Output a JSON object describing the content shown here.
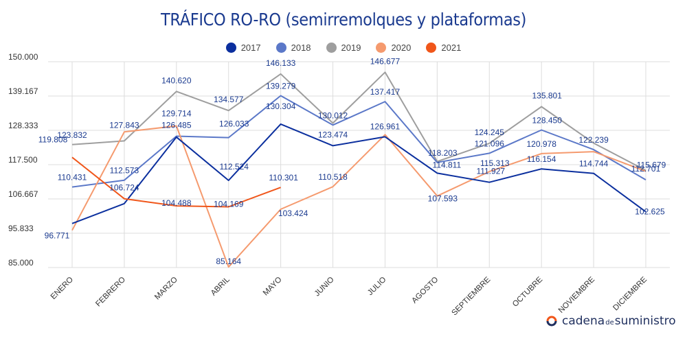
{
  "chart_data": {
    "type": "line",
    "title": "TRÁFICO RO-RO (semirremolques y plataformas)",
    "xlabel": "",
    "ylabel": "",
    "ylim": [
      85000,
      150000
    ],
    "yticks": [
      "150.000",
      "139.167",
      "128.333",
      "117.500",
      "106.667",
      "95.833",
      "85.000"
    ],
    "ytick_values": [
      150000,
      139167,
      128333,
      117500,
      106667,
      95833,
      85000
    ],
    "categories": [
      "ENERO",
      "FEBRERO",
      "MARZO",
      "ABRIL",
      "MAYO",
      "JUNIO",
      "JULIO",
      "AGOSTO",
      "SEPTIEMBRE",
      "OCTUBRE",
      "NOVIEMBRE",
      "DICIEMBRE"
    ],
    "grid": true,
    "legend_position": "top",
    "series": [
      {
        "name": "2017",
        "color": "#0b2f9e",
        "values": [
          98900,
          105200,
          126200,
          112524,
          130304,
          123474,
          126300,
          114811,
          111927,
          116154,
          114744,
          102625
        ],
        "labels": [
          "",
          "",
          "",
          "112.524",
          "130.304",
          "123.474",
          "",
          "114.811",
          "111.927",
          "116.154",
          "114.744",
          "102.625"
        ]
      },
      {
        "name": "2018",
        "color": "#5b78c8",
        "values": [
          110431,
          112573,
          126485,
          126033,
          139279,
          130012,
          137417,
          118203,
          121096,
          128450,
          122239,
          112701
        ],
        "labels": [
          "110.431",
          "112.573",
          "126.485",
          "126.033",
          "139.279",
          "130.012",
          "137.417",
          "118.203",
          "121.096",
          "128.450",
          "122.239",
          "112.701"
        ]
      },
      {
        "name": "2019",
        "color": "#9e9e9e",
        "values": [
          123832,
          125000,
          140620,
          134577,
          146133,
          130600,
          146677,
          118500,
          124245,
          135801,
          124300,
          115679
        ],
        "labels": [
          "123.832",
          "",
          "140.620",
          "134.577",
          "146.133",
          "",
          "146.677",
          "",
          "124.245",
          "135.801",
          "",
          "115.679"
        ]
      },
      {
        "name": "2020",
        "color": "#f59a6e",
        "values": [
          96771,
          127843,
          129714,
          85164,
          103424,
          110518,
          126961,
          107593,
          115313,
          120978,
          121600,
          115400
        ],
        "labels": [
          "96.771",
          "127.843",
          "129.714",
          "85.164",
          "103.424",
          "110.518",
          "126.961",
          "107.593",
          "115.313",
          "120.978",
          "",
          ""
        ]
      },
      {
        "name": "2021",
        "color": "#f0561a",
        "values": [
          119808,
          106724,
          104488,
          104169,
          110301,
          null,
          null,
          null,
          null,
          null,
          null,
          null
        ],
        "labels": [
          "119.808",
          "106.724",
          "104.488",
          "104.169",
          "110.301",
          "",
          "",
          "",
          "",
          "",
          "",
          ""
        ]
      }
    ]
  },
  "logo": {
    "part1": "cadena",
    "part2": "de",
    "part3": "suministro"
  }
}
